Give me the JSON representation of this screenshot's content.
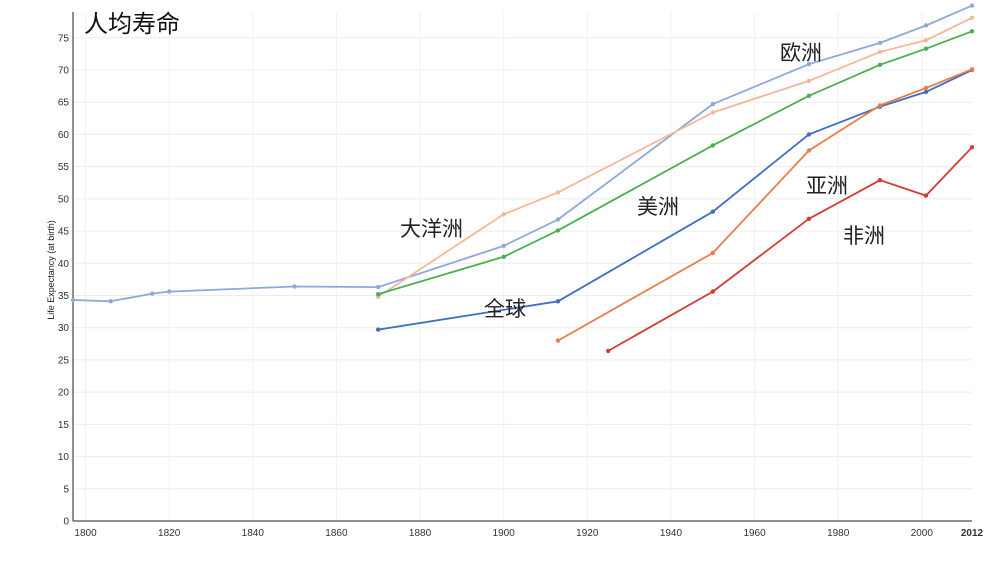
{
  "chart_data": {
    "type": "line",
    "title": "人均寿命",
    "ylabel": "Life Expectancy (at birth)",
    "xlim": [
      1797,
      2012
    ],
    "ylim": [
      0,
      79
    ],
    "x_ticks": [
      1800,
      1820,
      1840,
      1860,
      1880,
      1900,
      1920,
      1940,
      1960,
      1980,
      2000
    ],
    "x_tick_last": 2012,
    "y_ticks": [
      0,
      5,
      10,
      15,
      20,
      25,
      30,
      35,
      40,
      45,
      50,
      55,
      60,
      65,
      70,
      75
    ],
    "grid": true,
    "series": [
      {
        "name": "欧洲",
        "color": "#8fa8dc",
        "points": [
          [
            1797,
            34.3
          ],
          [
            1806,
            34.1
          ],
          [
            1816,
            35.3
          ],
          [
            1820,
            35.6
          ],
          [
            1850,
            36.4
          ],
          [
            1870,
            36.3
          ],
          [
            1900,
            42.7
          ],
          [
            1913,
            46.8
          ],
          [
            1950,
            64.7
          ],
          [
            1973,
            70.9
          ],
          [
            1990,
            74.2
          ],
          [
            2001,
            76.9
          ],
          [
            2012,
            80.0
          ]
        ]
      },
      {
        "name": "大洋洲",
        "color": "#f4b899",
        "points": [
          [
            1870,
            34.8
          ],
          [
            1900,
            47.6
          ],
          [
            1913,
            51.0
          ],
          [
            1950,
            63.4
          ],
          [
            1973,
            68.3
          ],
          [
            1990,
            72.8
          ],
          [
            2001,
            74.6
          ],
          [
            2012,
            78.1
          ]
        ]
      },
      {
        "name": "美洲",
        "color": "#4caf50",
        "points": [
          [
            1870,
            35.2
          ],
          [
            1900,
            41.0
          ],
          [
            1913,
            45.1
          ],
          [
            1950,
            58.3
          ],
          [
            1973,
            66.0
          ],
          [
            1990,
            70.8
          ],
          [
            2001,
            73.3
          ],
          [
            2012,
            76.0
          ]
        ]
      },
      {
        "name": "全球",
        "color": "#3f6fc0",
        "points": [
          [
            1870,
            29.7
          ],
          [
            1913,
            34.1
          ],
          [
            1950,
            48.0
          ],
          [
            1973,
            60.0
          ],
          [
            1990,
            64.3
          ],
          [
            2001,
            66.6
          ],
          [
            2012,
            70.0
          ]
        ]
      },
      {
        "name": "亚洲",
        "color": "#ea7d4d",
        "points": [
          [
            1913,
            28.0
          ],
          [
            1950,
            41.6
          ],
          [
            1973,
            57.5
          ],
          [
            1990,
            64.5
          ],
          [
            2001,
            67.2
          ],
          [
            2012,
            70.1
          ]
        ]
      },
      {
        "name": "非洲",
        "color": "#d23c32",
        "points": [
          [
            1925,
            26.4
          ],
          [
            1950,
            35.6
          ],
          [
            1973,
            46.9
          ],
          [
            1990,
            52.9
          ],
          [
            2001,
            50.5
          ],
          [
            2012,
            58.0
          ]
        ]
      }
    ]
  }
}
